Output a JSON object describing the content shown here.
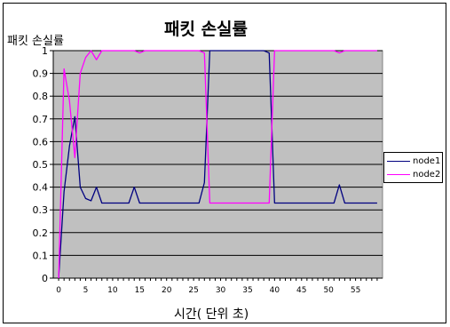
{
  "chart_data": {
    "type": "line",
    "title": "패킷 손실률",
    "ylabel": "패킷 손실률",
    "xlabel": "시간( 단위 초)",
    "ylim": [
      0,
      1
    ],
    "xlim": [
      -1,
      60
    ],
    "x_ticks": [
      0,
      5,
      10,
      15,
      20,
      25,
      30,
      35,
      40,
      45,
      50,
      55
    ],
    "y_ticks": [
      0,
      0.1,
      0.2,
      0.3,
      0.4,
      0.5,
      0.6,
      0.7,
      0.8,
      0.9,
      1
    ],
    "grid": "horizontal",
    "plot_background": "#c0c0c0",
    "legend_position": "right",
    "x": [
      0,
      1,
      2,
      3,
      4,
      5,
      6,
      7,
      8,
      9,
      10,
      11,
      12,
      13,
      14,
      15,
      16,
      17,
      18,
      19,
      20,
      21,
      22,
      23,
      24,
      25,
      26,
      27,
      28,
      29,
      30,
      31,
      32,
      33,
      34,
      35,
      36,
      37,
      38,
      39,
      40,
      41,
      42,
      43,
      44,
      45,
      46,
      47,
      48,
      49,
      50,
      51,
      52,
      53,
      54,
      55,
      56,
      57,
      58,
      59
    ],
    "series": [
      {
        "name": "node1",
        "color": "#000080",
        "values": [
          0,
          0.38,
          0.58,
          0.71,
          0.4,
          0.35,
          0.34,
          0.4,
          0.33,
          0.33,
          0.33,
          0.33,
          0.33,
          0.33,
          0.4,
          0.33,
          0.33,
          0.33,
          0.33,
          0.33,
          0.33,
          0.33,
          0.33,
          0.33,
          0.33,
          0.33,
          0.33,
          0.42,
          1,
          1,
          1,
          1,
          1,
          1,
          1,
          1,
          1,
          1,
          1,
          0.99,
          0.33,
          0.33,
          0.33,
          0.33,
          0.33,
          0.33,
          0.33,
          0.33,
          0.33,
          0.33,
          0.33,
          0.33,
          0.41,
          0.33,
          0.33,
          0.33,
          0.33,
          0.33,
          0.33,
          0.33
        ]
      },
      {
        "name": "node2",
        "color": "#ff00ff",
        "values": [
          0,
          0.92,
          0.78,
          0.53,
          0.9,
          0.97,
          1,
          0.96,
          1,
          1,
          1,
          1,
          1,
          1,
          1,
          0.99,
          1,
          1,
          1,
          1,
          1,
          1,
          1,
          1,
          1,
          1,
          1,
          0.99,
          0.33,
          0.33,
          0.33,
          0.33,
          0.33,
          0.33,
          0.33,
          0.33,
          0.33,
          0.33,
          0.33,
          0.33,
          1,
          1,
          1,
          1,
          1,
          1,
          1,
          1,
          1,
          1,
          1,
          1,
          0.99,
          1,
          1,
          1,
          1,
          1,
          1,
          1
        ]
      }
    ]
  }
}
